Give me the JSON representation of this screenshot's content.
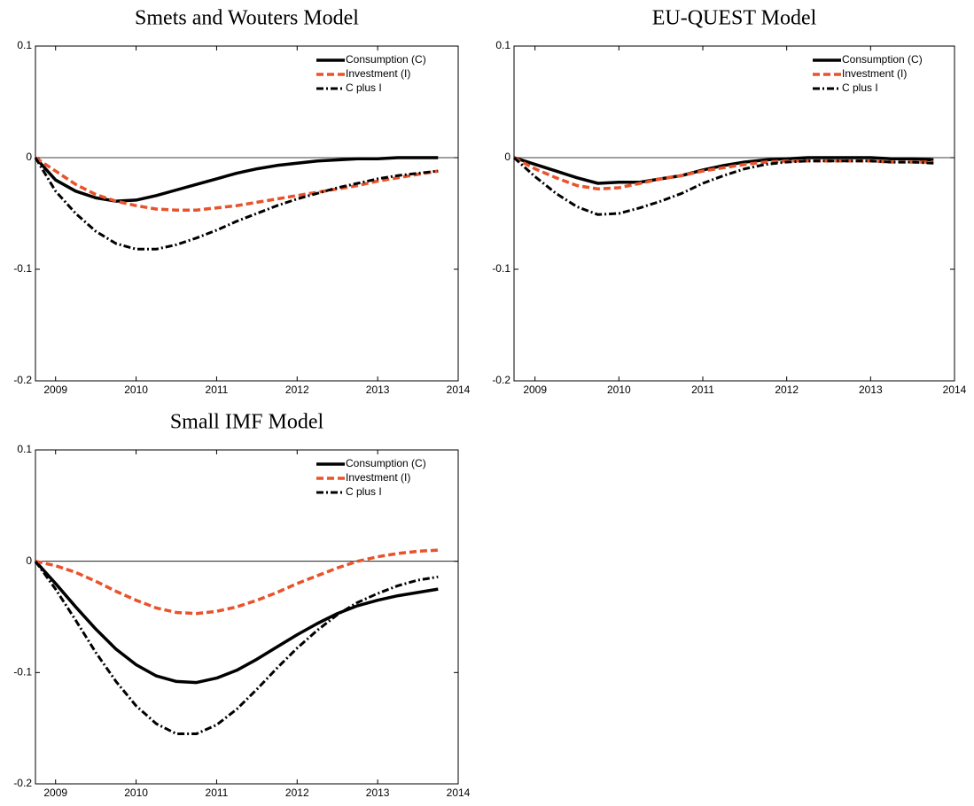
{
  "chart_data": [
    {
      "type": "line",
      "title": "Smets and Wouters Model",
      "x": [
        2008.75,
        2009,
        2009.25,
        2009.5,
        2009.75,
        2010,
        2010.25,
        2010.5,
        2010.75,
        2011,
        2011.25,
        2011.5,
        2011.75,
        2012,
        2012.25,
        2012.5,
        2012.75,
        2013,
        2013.25,
        2013.5,
        2013.75
      ],
      "xlim": [
        2008.75,
        2014
      ],
      "xticks": [
        2009,
        2010,
        2011,
        2012,
        2013,
        2014
      ],
      "ylim": [
        -0.2,
        0.1
      ],
      "yticks": [
        -0.2,
        -0.1,
        0,
        0.1
      ],
      "hline": 0,
      "legend": "upper right",
      "series": [
        {
          "name": "Consumption (C)",
          "color": "#000000",
          "style": "solid",
          "values": [
            0,
            -0.02,
            -0.03,
            -0.036,
            -0.039,
            -0.038,
            -0.034,
            -0.029,
            -0.024,
            -0.019,
            -0.014,
            -0.01,
            -0.007,
            -0.005,
            -0.003,
            -0.002,
            -0.001,
            -0.001,
            0,
            0,
            0
          ]
        },
        {
          "name": "Investment (I)",
          "color": "#e8532b",
          "style": "dashed",
          "values": [
            0,
            -0.012,
            -0.024,
            -0.033,
            -0.039,
            -0.043,
            -0.046,
            -0.047,
            -0.047,
            -0.045,
            -0.043,
            -0.04,
            -0.037,
            -0.034,
            -0.031,
            -0.028,
            -0.025,
            -0.021,
            -0.018,
            -0.015,
            -0.012
          ]
        },
        {
          "name": "C plus I",
          "color": "#000000",
          "style": "dashdot",
          "values": [
            0,
            -0.03,
            -0.05,
            -0.066,
            -0.077,
            -0.082,
            -0.082,
            -0.078,
            -0.072,
            -0.065,
            -0.057,
            -0.05,
            -0.043,
            -0.037,
            -0.032,
            -0.027,
            -0.023,
            -0.019,
            -0.016,
            -0.014,
            -0.012
          ]
        }
      ]
    },
    {
      "type": "line",
      "title": "EU-QUEST Model",
      "x": [
        2008.75,
        2009,
        2009.25,
        2009.5,
        2009.75,
        2010,
        2010.25,
        2010.5,
        2010.75,
        2011,
        2011.25,
        2011.5,
        2011.75,
        2012,
        2012.25,
        2012.5,
        2012.75,
        2013,
        2013.25,
        2013.5,
        2013.75
      ],
      "xlim": [
        2008.75,
        2014
      ],
      "xticks": [
        2009,
        2010,
        2011,
        2012,
        2013,
        2014
      ],
      "ylim": [
        -0.2,
        0.1
      ],
      "yticks": [
        -0.2,
        -0.1,
        0,
        0.1
      ],
      "hline": 0,
      "legend": "upper right",
      "series": [
        {
          "name": "Consumption (C)",
          "color": "#000000",
          "style": "solid",
          "values": [
            0,
            -0.006,
            -0.012,
            -0.018,
            -0.023,
            -0.022,
            -0.022,
            -0.019,
            -0.016,
            -0.011,
            -0.007,
            -0.004,
            -0.002,
            -0.001,
            0,
            0,
            0,
            0,
            -0.001,
            -0.001,
            -0.002
          ]
        },
        {
          "name": "Investment (I)",
          "color": "#e8532b",
          "style": "dashed",
          "values": [
            0,
            -0.01,
            -0.018,
            -0.025,
            -0.028,
            -0.027,
            -0.023,
            -0.019,
            -0.016,
            -0.012,
            -0.009,
            -0.006,
            -0.004,
            -0.003,
            -0.003,
            -0.003,
            -0.003,
            -0.003,
            -0.004,
            -0.004,
            -0.004
          ]
        },
        {
          "name": "C plus I",
          "color": "#000000",
          "style": "dashdot",
          "values": [
            0,
            -0.017,
            -0.032,
            -0.044,
            -0.051,
            -0.05,
            -0.045,
            -0.039,
            -0.032,
            -0.023,
            -0.016,
            -0.01,
            -0.006,
            -0.004,
            -0.003,
            -0.003,
            -0.003,
            -0.003,
            -0.004,
            -0.004,
            -0.005
          ]
        }
      ]
    },
    {
      "type": "line",
      "title": "Small IMF Model",
      "x": [
        2008.75,
        2009,
        2009.25,
        2009.5,
        2009.75,
        2010,
        2010.25,
        2010.5,
        2010.75,
        2011,
        2011.25,
        2011.5,
        2011.75,
        2012,
        2012.25,
        2012.5,
        2012.75,
        2013,
        2013.25,
        2013.5,
        2013.75
      ],
      "xlim": [
        2008.75,
        2014
      ],
      "xticks": [
        2009,
        2010,
        2011,
        2012,
        2013,
        2014
      ],
      "ylim": [
        -0.2,
        0.1
      ],
      "yticks": [
        -0.2,
        -0.1,
        0,
        0.1
      ],
      "hline": 0,
      "legend": "upper right",
      "series": [
        {
          "name": "Consumption (C)",
          "color": "#000000",
          "style": "solid",
          "values": [
            0,
            -0.02,
            -0.041,
            -0.061,
            -0.079,
            -0.093,
            -0.103,
            -0.108,
            -0.109,
            -0.105,
            -0.098,
            -0.088,
            -0.077,
            -0.066,
            -0.056,
            -0.047,
            -0.04,
            -0.035,
            -0.031,
            -0.028,
            -0.025
          ]
        },
        {
          "name": "Investment (I)",
          "color": "#e8532b",
          "style": "dashed",
          "values": [
            0,
            -0.004,
            -0.01,
            -0.018,
            -0.027,
            -0.035,
            -0.042,
            -0.046,
            -0.047,
            -0.045,
            -0.041,
            -0.035,
            -0.028,
            -0.02,
            -0.013,
            -0.006,
            0,
            0.004,
            0.007,
            0.009,
            0.01
          ]
        },
        {
          "name": "C plus I",
          "color": "#000000",
          "style": "dashdot",
          "values": [
            0,
            -0.025,
            -0.053,
            -0.082,
            -0.108,
            -0.13,
            -0.146,
            -0.155,
            -0.155,
            -0.147,
            -0.133,
            -0.115,
            -0.096,
            -0.078,
            -0.062,
            -0.048,
            -0.037,
            -0.029,
            -0.022,
            -0.017,
            -0.014
          ]
        }
      ]
    }
  ]
}
